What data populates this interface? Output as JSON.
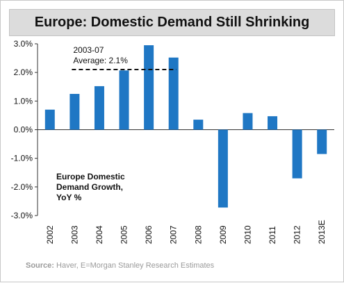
{
  "chart_data": {
    "type": "bar",
    "title": "Europe: Domestic Demand Still Shrinking",
    "categories": [
      "2002",
      "2003",
      "2004",
      "2005",
      "2006",
      "2007",
      "2008",
      "2009",
      "2010",
      "2011",
      "2012",
      "2013E"
    ],
    "values": [
      0.7,
      1.25,
      1.52,
      2.07,
      2.95,
      2.52,
      0.35,
      -2.72,
      0.58,
      0.47,
      -1.7,
      -0.85
    ],
    "ylim": [
      -3.0,
      3.0
    ],
    "yticks": [
      "3.0%",
      "2.0%",
      "1.0%",
      "0.0%",
      "-1.0%",
      "-2.0%",
      "-3.0%"
    ],
    "ytick_values": [
      3,
      2,
      1,
      0,
      -1,
      -2,
      -3
    ],
    "bar_color": "#1f77c4",
    "series_label": [
      "Europe Domestic",
      "Demand Growth,",
      "YoY %"
    ],
    "average_annotation": {
      "label_line1": "2003-07",
      "label_line2": "Average: 2.1%",
      "value": 2.1,
      "from_category": "2003",
      "to_category": "2007"
    },
    "grid": false,
    "legend": "none"
  },
  "source": {
    "prefix": "Source:",
    "text": " Haver, E=Morgan Stanley Research Estimates"
  }
}
